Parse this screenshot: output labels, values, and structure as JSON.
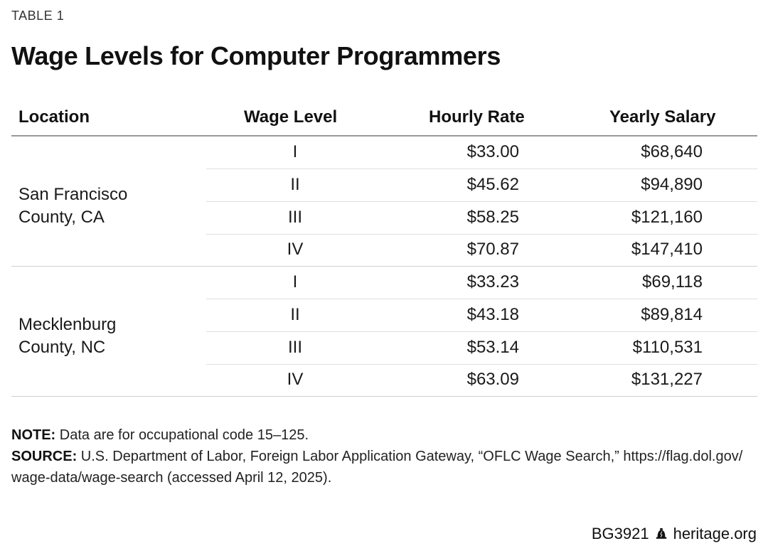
{
  "eyebrow": "TABLE 1",
  "title": "Wage Levels for Computer Programmers",
  "columns": {
    "location": "Location",
    "level": "Wage Level",
    "hourly": "Hourly Rate",
    "yearly": "Yearly Salary"
  },
  "groups": [
    {
      "location_line1": "San Francisco",
      "location_line2": "County, CA",
      "rows": [
        {
          "level": "I",
          "hourly": "$33.00",
          "yearly": "$68,640"
        },
        {
          "level": "II",
          "hourly": "$45.62",
          "yearly": "$94,890"
        },
        {
          "level": "III",
          "hourly": "$58.25",
          "yearly": "$121,160"
        },
        {
          "level": "IV",
          "hourly": "$70.87",
          "yearly": "$147,410"
        }
      ]
    },
    {
      "location_line1": "Mecklenburg",
      "location_line2": "County, NC",
      "rows": [
        {
          "level": "I",
          "hourly": "$33.23",
          "yearly": "$69,118"
        },
        {
          "level": "II",
          "hourly": "$43.18",
          "yearly": "$89,814"
        },
        {
          "level": "III",
          "hourly": "$53.14",
          "yearly": "$110,531"
        },
        {
          "level": "IV",
          "hourly": "$63.09",
          "yearly": "$131,227"
        }
      ]
    }
  ],
  "note": {
    "label": "NOTE:",
    "text": " Data are for occupational code 15–125."
  },
  "source": {
    "label": "SOURCE:",
    "text": " U.S. Department of Labor, Foreign Labor Application Gateway, “OFLC Wage Search,” https://flag.dol.gov/ wage-data/wage-search (accessed April 12, 2025)."
  },
  "footer": {
    "code": "BG3921",
    "site": "heritage.org",
    "icon": "liberty-bell-icon"
  }
}
